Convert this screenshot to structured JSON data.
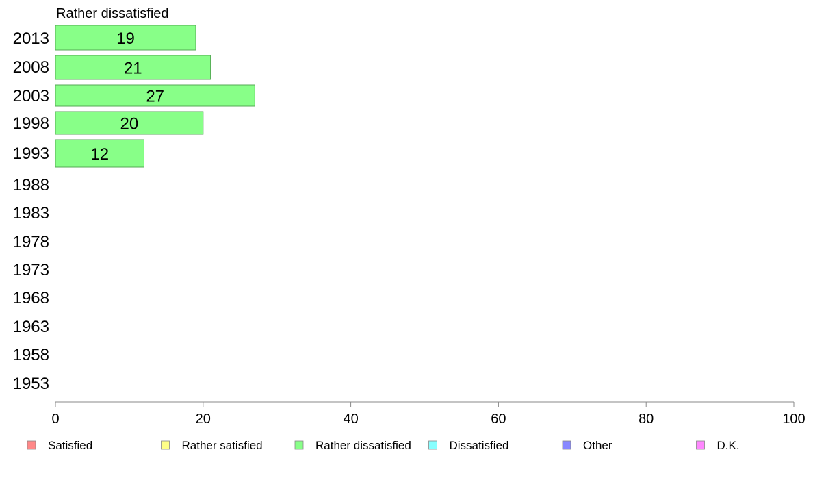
{
  "chart_data": {
    "type": "bar",
    "orientation": "horizontal",
    "title": "Rather dissatisfied",
    "categories": [
      "2013",
      "2008",
      "2003",
      "1998",
      "1993",
      "1988",
      "1983",
      "1978",
      "1973",
      "1968",
      "1963",
      "1958",
      "1953"
    ],
    "series": [
      {
        "name": "Rather dissatisfied",
        "color": "#88ff88",
        "values": [
          19,
          21,
          27,
          20,
          12,
          null,
          null,
          null,
          null,
          null,
          null,
          null,
          null
        ]
      }
    ],
    "xlim": [
      0,
      100
    ],
    "xticks": [
      "0",
      "20",
      "40",
      "60",
      "80",
      "100"
    ],
    "grid": false,
    "legend": {
      "placement": "bottom",
      "items": [
        {
          "label": "Satisfied",
          "color": "#ff8888"
        },
        {
          "label": "Rather satisfied",
          "color": "#ffff88"
        },
        {
          "label": "Rather dissatisfied",
          "color": "#88ff88"
        },
        {
          "label": "Dissatisfied",
          "color": "#88ffff"
        },
        {
          "label": "Other",
          "color": "#8888ff"
        },
        {
          "label": "D.K.",
          "color": "#ff88ff"
        }
      ]
    }
  }
}
